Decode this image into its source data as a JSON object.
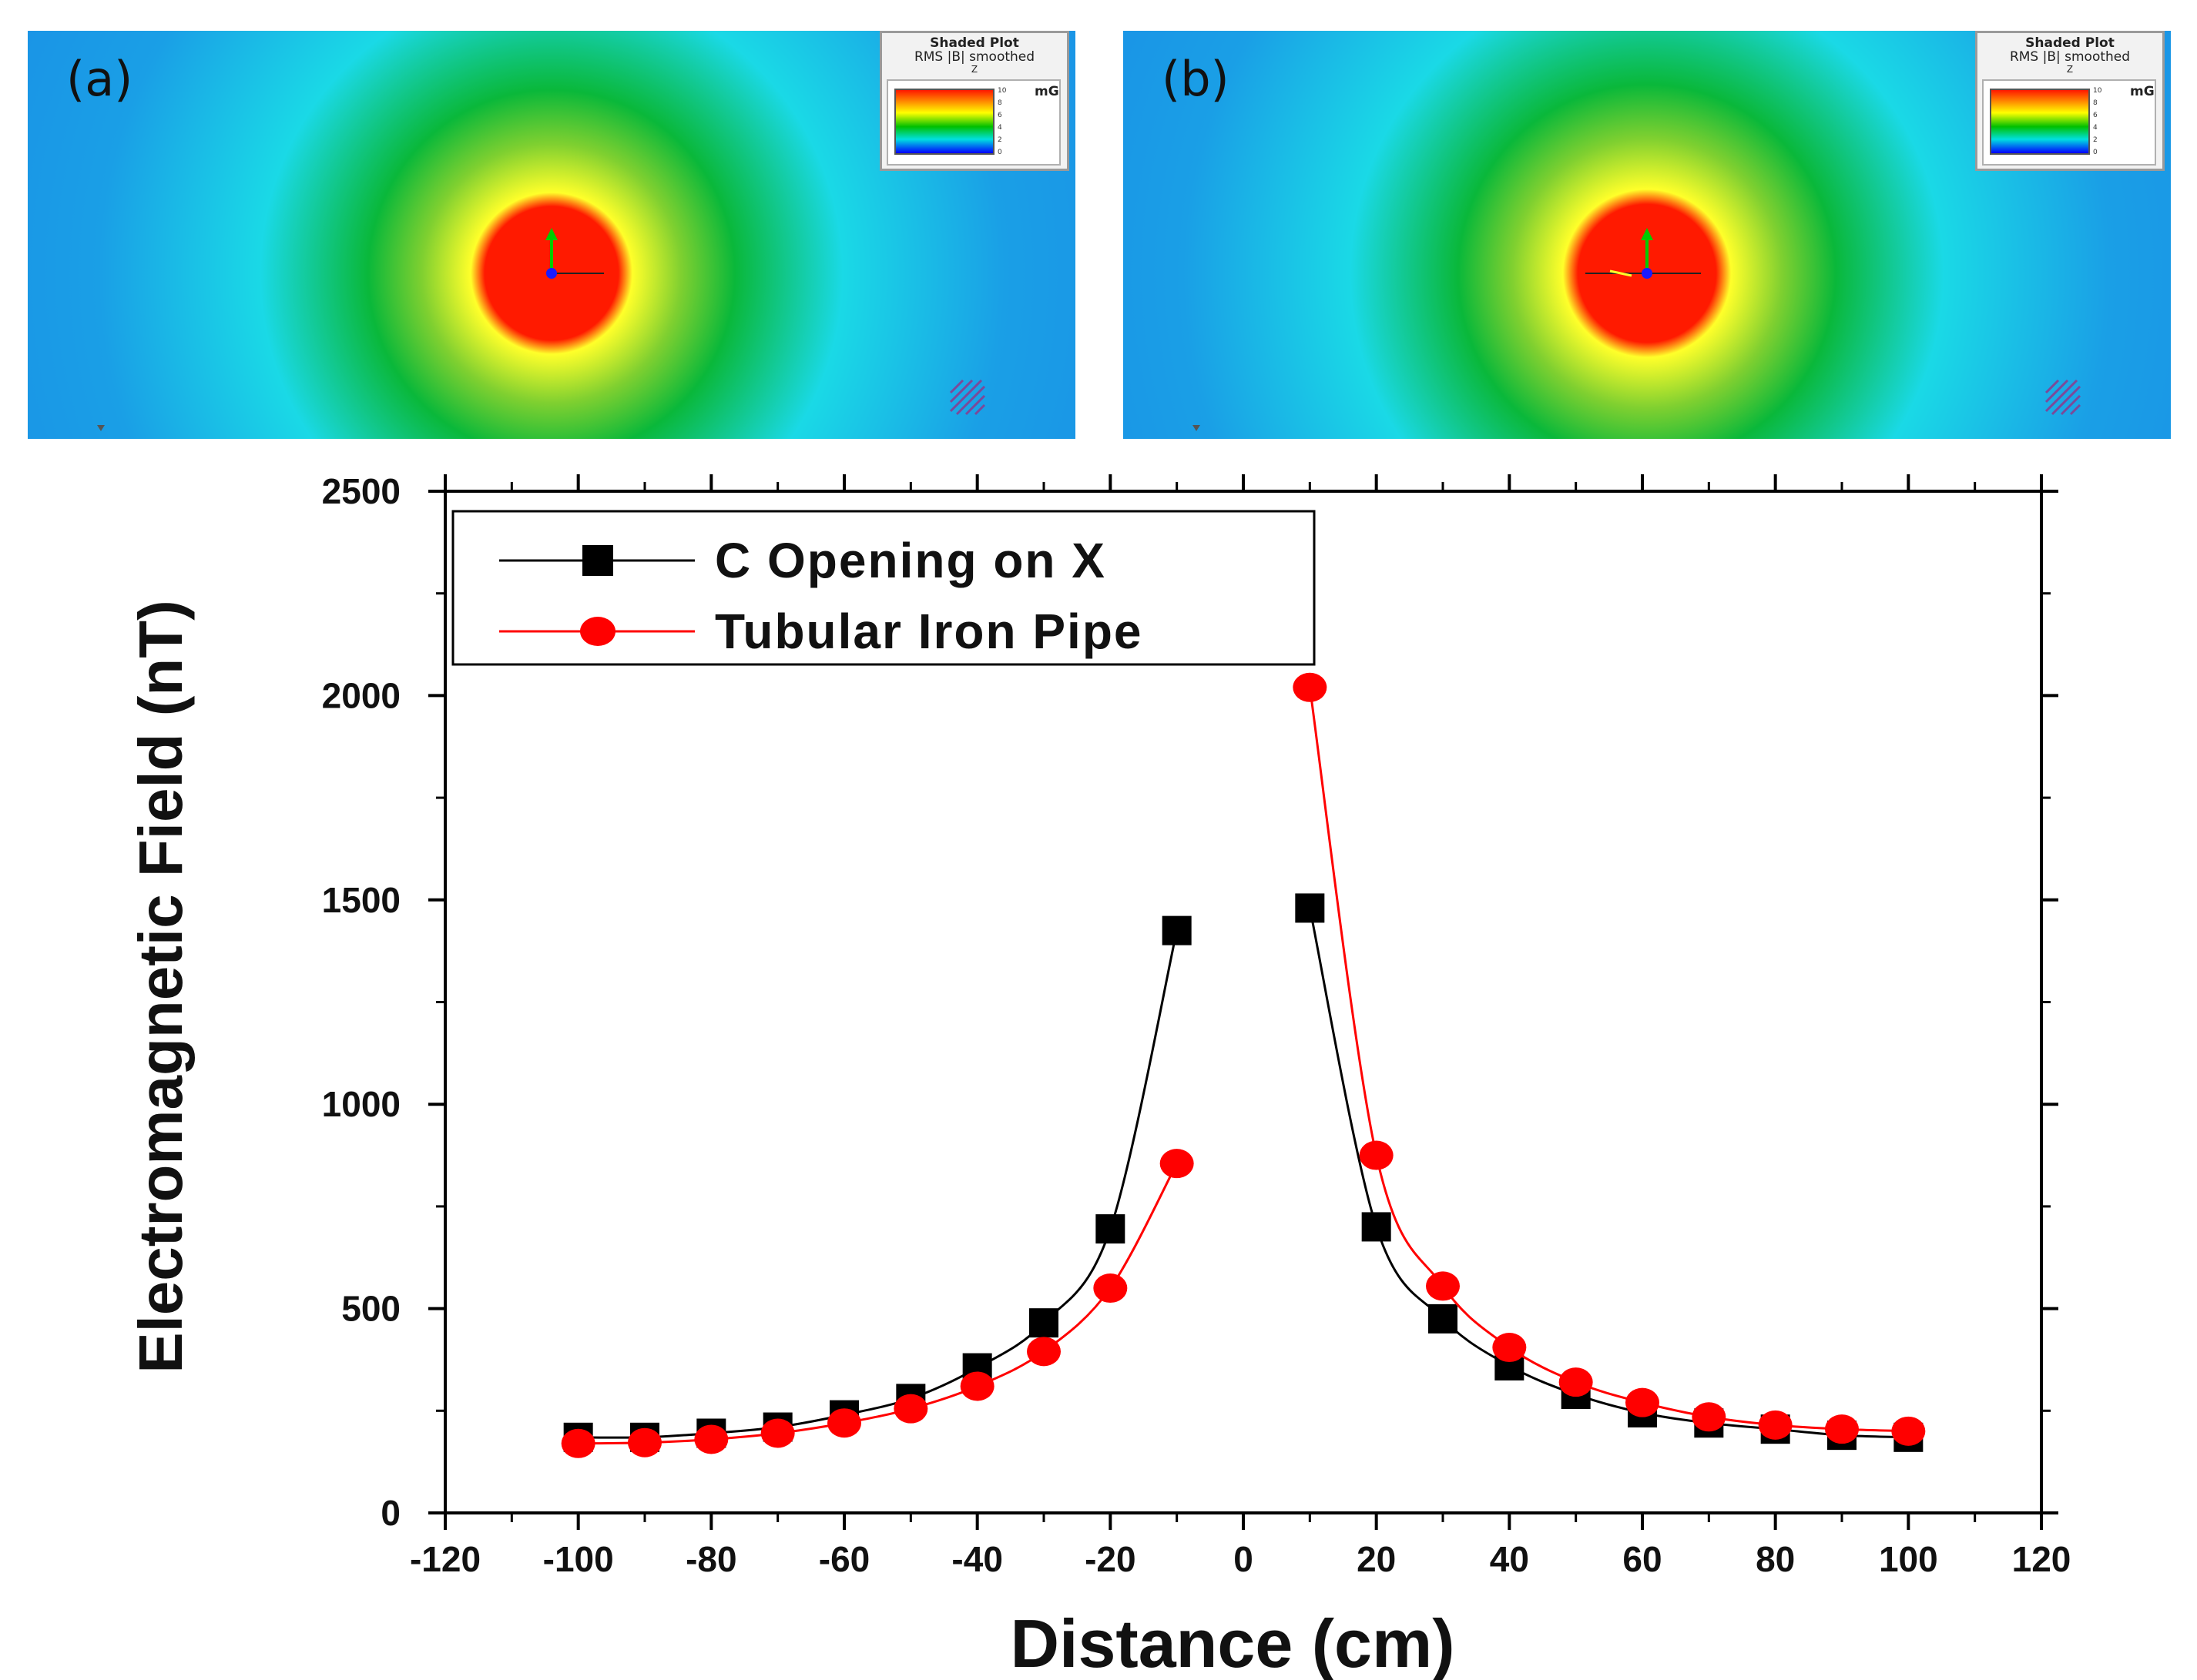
{
  "panels": [
    {
      "label": "(a)",
      "legend_title": "Shaded Plot",
      "legend_subtitle": "RMS |B| smoothed",
      "legend_axis": "Z",
      "legend_unit": "mG",
      "legend_ticks": [
        "10",
        "8",
        "6",
        "4",
        "2",
        "0"
      ]
    },
    {
      "label": "(b)",
      "legend_title": "Shaded Plot",
      "legend_subtitle": "RMS |B| smoothed",
      "legend_axis": "Z",
      "legend_unit": "mG",
      "legend_ticks": [
        "10",
        "8",
        "6",
        "4",
        "2",
        "0"
      ]
    }
  ],
  "colors": {
    "series_black": "#000000",
    "series_red": "#ff0000",
    "field_red": "#ff1a00",
    "field_yellow": "#ffff2a",
    "field_green": "#0ab83a",
    "field_cyan": "#1ad9e6",
    "field_blue": "#1a86e6"
  },
  "chart_data": {
    "type": "line",
    "title": "",
    "xlabel": "Distance (cm)",
    "ylabel": "Electromagnetic Field (nT)",
    "xlim": [
      -120,
      120
    ],
    "ylim": [
      0,
      2500
    ],
    "xticks": [
      -120,
      -100,
      -80,
      -60,
      -40,
      -20,
      0,
      20,
      40,
      60,
      80,
      100,
      120
    ],
    "yticks": [
      0,
      500,
      1000,
      1500,
      2000,
      2500
    ],
    "grid": false,
    "legend_position": "top-left",
    "x": [
      -100,
      -90,
      -80,
      -70,
      -60,
      -50,
      -40,
      -30,
      -20,
      -10,
      10,
      20,
      30,
      40,
      50,
      60,
      70,
      80,
      90,
      100
    ],
    "series": [
      {
        "name": "C Opening on X",
        "color": "#000000",
        "marker": "square",
        "values": [
          185,
          185,
          195,
          210,
          240,
          280,
          355,
          465,
          695,
          1425,
          1480,
          700,
          475,
          360,
          290,
          245,
          220,
          205,
          190,
          185
        ]
      },
      {
        "name": "Tubular Iron Pipe",
        "color": "#ff0000",
        "marker": "circle",
        "values": [
          170,
          172,
          180,
          195,
          220,
          255,
          310,
          395,
          550,
          855,
          2020,
          875,
          555,
          405,
          320,
          270,
          235,
          215,
          205,
          200
        ]
      }
    ]
  }
}
